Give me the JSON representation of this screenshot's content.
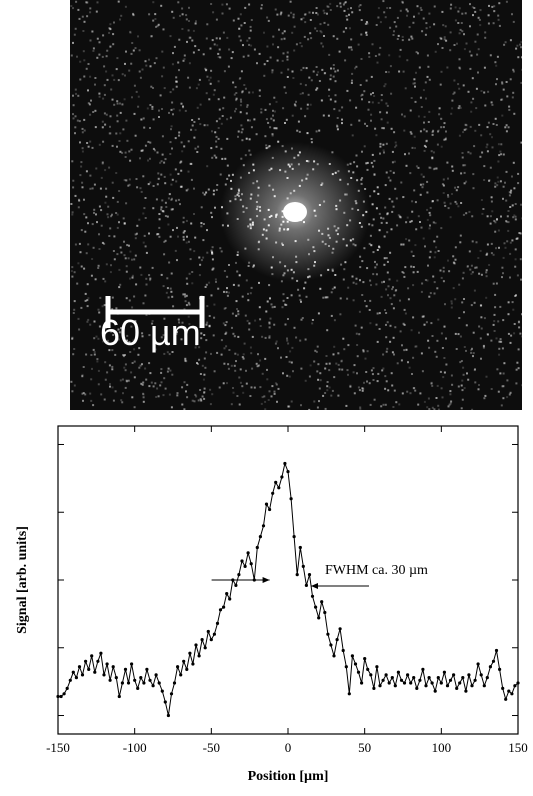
{
  "image_panel": {
    "scale_bar_label": "60 µm",
    "background_color": "#0d0d0d",
    "speckle_color": "#ffffff"
  },
  "chart_data": {
    "type": "line",
    "title": "",
    "xlabel": "Position [µm]",
    "ylabel": "Signal [arb. units]",
    "xlim": [
      -150,
      150
    ],
    "ylim": [
      0,
      1
    ],
    "x_ticks": [
      -150,
      -100,
      -50,
      0,
      50,
      100,
      150
    ],
    "y_ticks_labeled": false,
    "grid": false,
    "legend": "none",
    "annotation": {
      "text": "FWHM ca. 30 µm",
      "fwhm_left_x": -12,
      "fwhm_right_x": 15,
      "fwhm_level": 0.5
    },
    "series": [
      {
        "x": [
          -150,
          -148,
          -146,
          -144,
          -142,
          -140,
          -138,
          -136,
          -134,
          -132,
          -130,
          -128,
          -126,
          -124,
          -122,
          -120,
          -118,
          -116,
          -114,
          -112,
          -110,
          -108,
          -106,
          -104,
          -102,
          -100,
          -98,
          -96,
          -94,
          -92,
          -90,
          -88,
          -86,
          -84,
          -82,
          -80,
          -78,
          -76,
          -74,
          -72,
          -70,
          -68,
          -66,
          -64,
          -62,
          -60,
          -58,
          -56,
          -54,
          -52,
          -50,
          -48,
          -46,
          -44,
          -42,
          -40,
          -38,
          -36,
          -34,
          -32,
          -30,
          -28,
          -26,
          -24,
          -22,
          -20,
          -18,
          -16,
          -14,
          -12,
          -10,
          -8,
          -6,
          -4,
          -2,
          0,
          2,
          4,
          6,
          8,
          10,
          12,
          14,
          16,
          18,
          20,
          22,
          24,
          26,
          28,
          30,
          32,
          34,
          36,
          38,
          40,
          42,
          44,
          46,
          48,
          50,
          52,
          54,
          56,
          58,
          60,
          62,
          64,
          66,
          68,
          70,
          72,
          74,
          76,
          78,
          80,
          82,
          84,
          86,
          88,
          90,
          92,
          94,
          96,
          98,
          100,
          102,
          104,
          106,
          108,
          110,
          112,
          114,
          116,
          118,
          120,
          122,
          124,
          126,
          128,
          130,
          132,
          134,
          136,
          138,
          140,
          142,
          144,
          146,
          148,
          150
        ],
        "y": [
          0.07,
          0.07,
          0.08,
          0.1,
          0.13,
          0.16,
          0.14,
          0.18,
          0.15,
          0.2,
          0.17,
          0.22,
          0.16,
          0.2,
          0.23,
          0.15,
          0.19,
          0.13,
          0.18,
          0.14,
          0.07,
          0.12,
          0.17,
          0.12,
          0.19,
          0.13,
          0.1,
          0.14,
          0.12,
          0.17,
          0.13,
          0.11,
          0.15,
          0.12,
          0.09,
          0.05,
          0.0,
          0.08,
          0.12,
          0.18,
          0.15,
          0.2,
          0.17,
          0.23,
          0.19,
          0.26,
          0.22,
          0.28,
          0.25,
          0.31,
          0.28,
          0.3,
          0.34,
          0.39,
          0.4,
          0.45,
          0.43,
          0.5,
          0.48,
          0.52,
          0.57,
          0.55,
          0.6,
          0.56,
          0.5,
          0.62,
          0.66,
          0.7,
          0.78,
          0.76,
          0.82,
          0.86,
          0.84,
          0.88,
          0.93,
          0.9,
          0.8,
          0.66,
          0.52,
          0.62,
          0.55,
          0.48,
          0.52,
          0.44,
          0.4,
          0.36,
          0.42,
          0.38,
          0.3,
          0.26,
          0.22,
          0.28,
          0.32,
          0.24,
          0.18,
          0.08,
          0.22,
          0.19,
          0.16,
          0.12,
          0.21,
          0.17,
          0.15,
          0.1,
          0.18,
          0.11,
          0.13,
          0.15,
          0.12,
          0.14,
          0.11,
          0.16,
          0.13,
          0.12,
          0.15,
          0.12,
          0.14,
          0.1,
          0.13,
          0.17,
          0.11,
          0.14,
          0.12,
          0.09,
          0.14,
          0.12,
          0.16,
          0.11,
          0.13,
          0.15,
          0.1,
          0.12,
          0.14,
          0.09,
          0.15,
          0.11,
          0.13,
          0.19,
          0.15,
          0.11,
          0.14,
          0.18,
          0.2,
          0.24,
          0.17,
          0.1,
          0.06,
          0.09,
          0.08,
          0.11,
          0.12
        ]
      }
    ]
  }
}
